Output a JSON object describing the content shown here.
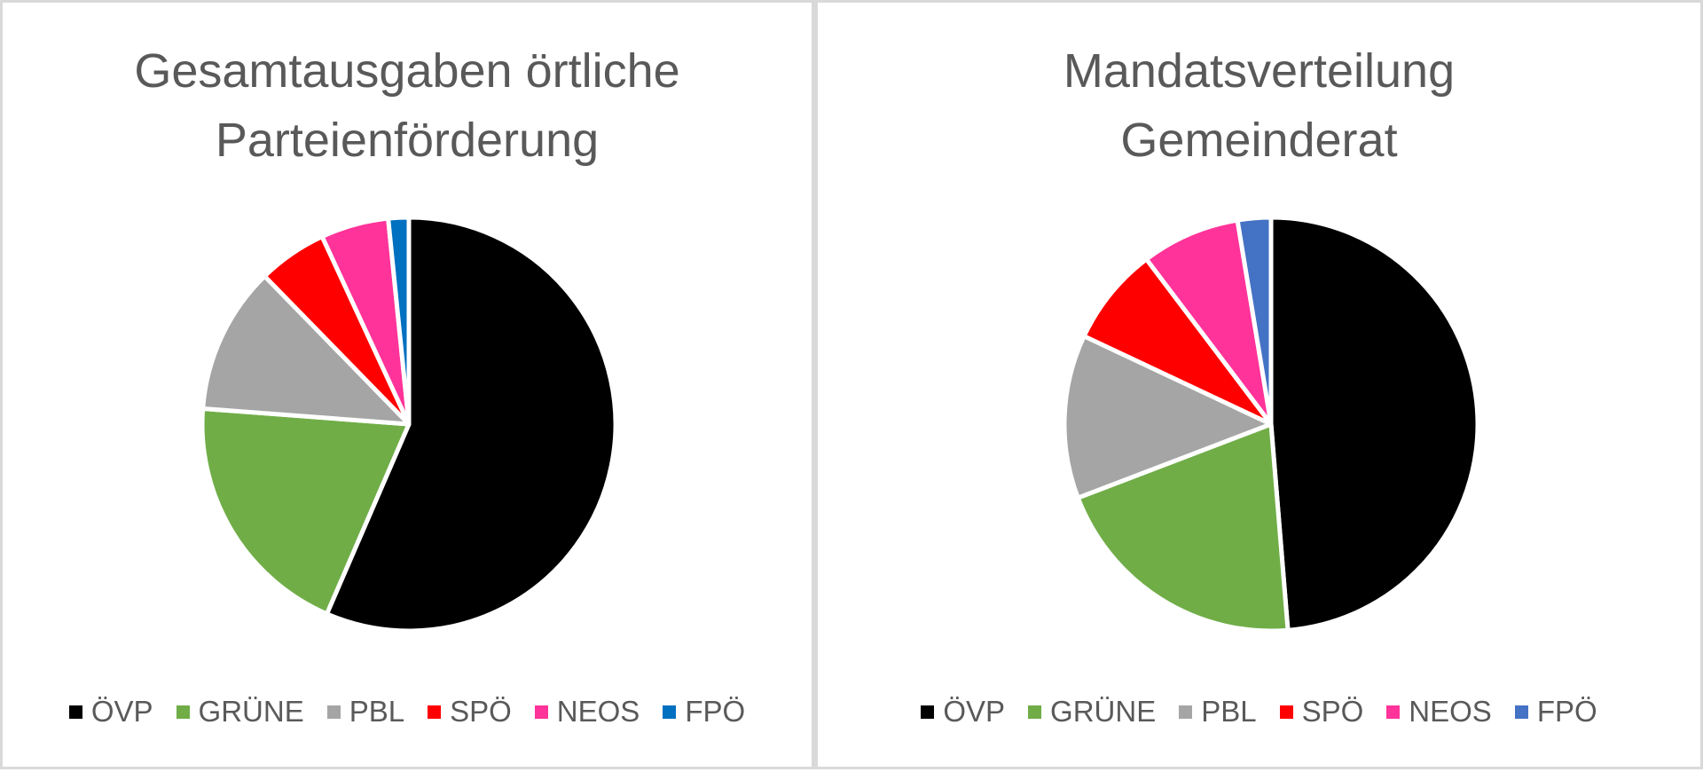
{
  "chart_data": [
    {
      "type": "pie",
      "title": [
        "Gesamtausgaben örtliche",
        "Parteienförderung"
      ],
      "categories": [
        "ÖVP",
        "GRÜNE",
        "PBL",
        "SPÖ",
        "NEOS",
        "FPÖ"
      ],
      "values": [
        56.5,
        19.7,
        11.5,
        5.4,
        5.3,
        1.6
      ],
      "colors": [
        "#000000",
        "#70ad47",
        "#a5a5a5",
        "#ff0000",
        "#ff3399",
        "#0070c0"
      ],
      "legend_position": "bottom"
    },
    {
      "type": "pie",
      "title": [
        "Mandatsverteilung",
        "Gemeinderat"
      ],
      "categories": [
        "ÖVP",
        "GRÜNE",
        "PBL",
        "SPÖ",
        "NEOS",
        "FPÖ"
      ],
      "values": [
        48.7,
        20.5,
        12.8,
        7.7,
        7.7,
        2.6
      ],
      "colors": [
        "#000000",
        "#70ad47",
        "#a5a5a5",
        "#ff0000",
        "#ff3399",
        "#4472c4"
      ],
      "legend_position": "bottom"
    }
  ]
}
